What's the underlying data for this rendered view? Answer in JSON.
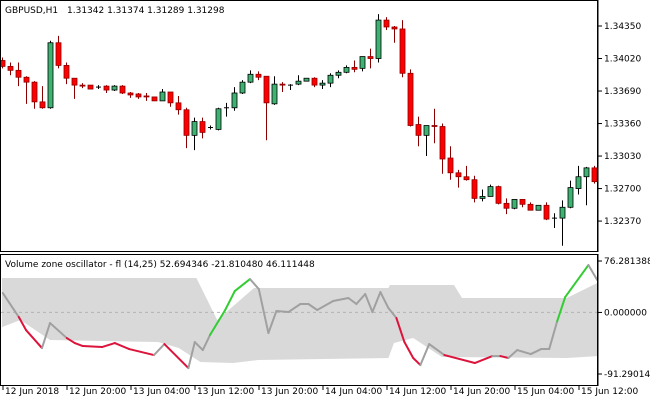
{
  "main_chart": {
    "symbol_label": "GBPUSD,H1",
    "ohlc_label": "1.31342 1.31374 1.31289 1.31298",
    "price_axis": [
      "1.34350",
      "1.34020",
      "1.33690",
      "1.33360",
      "1.33030",
      "1.32700",
      "1.32370"
    ],
    "colors": {
      "bull": "#3cb371",
      "bear": "#ff0000",
      "bear_wick": "#8b0000",
      "bull_wick": "#000000"
    }
  },
  "oscillator": {
    "label": "Volume zone oscillator - fl (14,25) 52.694346 -21.810480 46.111448",
    "axis": [
      "76.281388",
      "0.000000",
      "-91.290143"
    ],
    "colors": {
      "bull": "#32cd32",
      "bear": "#dc143c",
      "neutral": "#a0a0a0",
      "band": "#d9d9d9",
      "zero": "#b4b4b4"
    }
  },
  "time_axis": [
    "12 Jun 2018",
    "12 Jun 20:00",
    "13 Jun 04:00",
    "13 Jun 12:00",
    "13 Jun 20:00",
    "14 Jun 04:00",
    "14 Jun 12:00",
    "14 Jun 20:00",
    "15 Jun 04:00",
    "15 Jun 12:00"
  ],
  "chart_data": {
    "type": "candlestick",
    "candles_ohlc": [
      [
        1.34,
        1.3403,
        1.3392,
        1.3394
      ],
      [
        1.3394,
        1.3398,
        1.3385,
        1.339
      ],
      [
        1.339,
        1.3398,
        1.3374,
        1.3383
      ],
      [
        1.3383,
        1.3384,
        1.3356,
        1.3378
      ],
      [
        1.3378,
        1.3379,
        1.3351,
        1.3358
      ],
      [
        1.3358,
        1.3374,
        1.3351,
        1.3352
      ],
      [
        1.3352,
        1.342,
        1.3351,
        1.3418
      ],
      [
        1.3418,
        1.3425,
        1.3392,
        1.3395
      ],
      [
        1.3395,
        1.3398,
        1.3376,
        1.3382
      ],
      [
        1.3382,
        1.3382,
        1.3361,
        1.3375
      ],
      [
        1.3375,
        1.3377,
        1.3372,
        1.3374
      ],
      [
        1.3375,
        1.3375,
        1.3371,
        1.3371
      ],
      [
        1.3373,
        1.3375,
        1.3371,
        1.3373
      ],
      [
        1.3374,
        1.3375,
        1.3367,
        1.337
      ],
      [
        1.337,
        1.3375,
        1.3369,
        1.3374
      ],
      [
        1.3374,
        1.3375,
        1.3366,
        1.3367
      ],
      [
        1.3367,
        1.3368,
        1.3362,
        1.3365
      ],
      [
        1.3366,
        1.3367,
        1.3361,
        1.3363
      ],
      [
        1.3364,
        1.3367,
        1.3359,
        1.3363
      ],
      [
        1.3363,
        1.3363,
        1.3359,
        1.3359
      ],
      [
        1.3359,
        1.3371,
        1.3359,
        1.3368
      ],
      [
        1.3368,
        1.3368,
        1.3353,
        1.3357
      ],
      [
        1.3357,
        1.3364,
        1.3345,
        1.335
      ],
      [
        1.335,
        1.3352,
        1.3311,
        1.3324
      ],
      [
        1.3324,
        1.3342,
        1.3309,
        1.3338
      ],
      [
        1.3338,
        1.3342,
        1.3321,
        1.3327
      ],
      [
        1.3332,
        1.3334,
        1.333,
        1.3332
      ],
      [
        1.333,
        1.3352,
        1.3329,
        1.3351
      ],
      [
        1.3352,
        1.3357,
        1.3343,
        1.3352
      ],
      [
        1.3352,
        1.3373,
        1.3349,
        1.3367
      ],
      [
        1.3367,
        1.338,
        1.3366,
        1.3378
      ],
      [
        1.3378,
        1.339,
        1.3377,
        1.3386
      ],
      [
        1.3386,
        1.3389,
        1.338,
        1.3383
      ],
      [
        1.3384,
        1.3384,
        1.3319,
        1.3357
      ],
      [
        1.3356,
        1.3384,
        1.3355,
        1.3376
      ],
      [
        1.3376,
        1.3378,
        1.3368,
        1.3375
      ],
      [
        1.3375,
        1.3376,
        1.337,
        1.3375
      ],
      [
        1.3376,
        1.3385,
        1.3375,
        1.3379
      ],
      [
        1.3379,
        1.3382,
        1.3379,
        1.3382
      ],
      [
        1.3382,
        1.3383,
        1.3373,
        1.3375
      ],
      [
        1.3375,
        1.338,
        1.3371,
        1.3377
      ],
      [
        1.3377,
        1.3387,
        1.3373,
        1.3385
      ],
      [
        1.3385,
        1.339,
        1.3382,
        1.3388
      ],
      [
        1.3388,
        1.3395,
        1.3387,
        1.3393
      ],
      [
        1.3393,
        1.34,
        1.3388,
        1.3391
      ],
      [
        1.3392,
        1.3404,
        1.3389,
        1.3404
      ],
      [
        1.3404,
        1.3412,
        1.3392,
        1.3402
      ],
      [
        1.3402,
        1.3447,
        1.3398,
        1.3441
      ],
      [
        1.3441,
        1.3444,
        1.3431,
        1.3434
      ],
      [
        1.3434,
        1.3435,
        1.3418,
        1.3432
      ],
      [
        1.3432,
        1.3441,
        1.3383,
        1.3387
      ],
      [
        1.3387,
        1.3391,
        1.3333,
        1.3334
      ],
      [
        1.3335,
        1.3343,
        1.3313,
        1.3324
      ],
      [
        1.3324,
        1.3334,
        1.3303,
        1.3334
      ],
      [
        1.3334,
        1.3351,
        1.3316,
        1.3333
      ],
      [
        1.3333,
        1.3336,
        1.3285,
        1.33
      ],
      [
        1.3301,
        1.3313,
        1.3279,
        1.3286
      ],
      [
        1.3286,
        1.3289,
        1.3271,
        1.3282
      ],
      [
        1.3282,
        1.3293,
        1.3278,
        1.3279
      ],
      [
        1.3279,
        1.3283,
        1.3256,
        1.326
      ],
      [
        1.326,
        1.3269,
        1.3257,
        1.3262
      ],
      [
        1.3262,
        1.3274,
        1.3262,
        1.3272
      ],
      [
        1.3272,
        1.3273,
        1.3254,
        1.3255
      ],
      [
        1.3255,
        1.326,
        1.3244,
        1.325
      ],
      [
        1.325,
        1.3259,
        1.3249,
        1.3259
      ],
      [
        1.3259,
        1.3259,
        1.3251,
        1.3254
      ],
      [
        1.3254,
        1.3256,
        1.3248,
        1.3248
      ],
      [
        1.3248,
        1.3253,
        1.3248,
        1.3253
      ],
      [
        1.3253,
        1.3256,
        1.3238,
        1.3239
      ],
      [
        1.324,
        1.3245,
        1.323,
        1.324
      ],
      [
        1.324,
        1.3258,
        1.3212,
        1.3251
      ],
      [
        1.3251,
        1.3278,
        1.325,
        1.3271
      ],
      [
        1.327,
        1.3293,
        1.3264,
        1.3282
      ],
      [
        1.3282,
        1.3292,
        1.3253,
        1.3291
      ],
      [
        1.3291,
        1.3293,
        1.3275,
        1.3277
      ]
    ],
    "price_range": [
      1.321,
      1.346
    ],
    "oscillator_range": [
      -91.290143,
      76.281388
    ],
    "oscillator_line": [
      [
        0.1,
        28.8,
        "n"
      ],
      [
        2.1,
        -6.8,
        "n"
      ],
      [
        3,
        -26.1,
        "bear"
      ],
      [
        5,
        -52.8,
        "bear"
      ],
      [
        6,
        -15.7,
        "n"
      ],
      [
        8.1,
        -38.0,
        "n"
      ],
      [
        9.1,
        -45.4,
        "bear"
      ],
      [
        10.1,
        -49.8,
        "bear"
      ],
      [
        12.5,
        -51.3,
        "bear"
      ],
      [
        14.1,
        -45.4,
        "bear"
      ],
      [
        15.9,
        -54.3,
        "bear"
      ],
      [
        19,
        -63.2,
        "bear"
      ],
      [
        20.3,
        -46.9,
        "n"
      ],
      [
        23.3,
        -82.5,
        "bear"
      ],
      [
        24.1,
        -43.9,
        "n"
      ],
      [
        25.1,
        -55.8,
        "n"
      ],
      [
        26,
        -33.5,
        "n"
      ],
      [
        27.9,
        3.6,
        "bull"
      ],
      [
        29.1,
        31.7,
        "bull"
      ],
      [
        31,
        49.5,
        "bull"
      ],
      [
        32.1,
        34.7,
        "n"
      ],
      [
        33.3,
        -30.6,
        "n"
      ],
      [
        34.3,
        2.1,
        "n"
      ],
      [
        35.8,
        0.6,
        "n"
      ],
      [
        37.3,
        12.5,
        "n"
      ],
      [
        38.3,
        12.5,
        "n"
      ],
      [
        39.4,
        3.6,
        "n"
      ],
      [
        41.4,
        16.9,
        "n"
      ],
      [
        43.3,
        21.4,
        "n"
      ],
      [
        44.3,
        12.5,
        "n"
      ],
      [
        45.4,
        27.3,
        "n"
      ],
      [
        46.3,
        0.6,
        "n"
      ],
      [
        47.3,
        30.2,
        "n"
      ],
      [
        48.3,
        6.5,
        "n"
      ],
      [
        49.3,
        -8.3,
        "n"
      ],
      [
        50.3,
        -43.9,
        "bear"
      ],
      [
        51.4,
        -67.6,
        "bear"
      ],
      [
        52.3,
        -78.0,
        "bear"
      ],
      [
        53.4,
        -46.9,
        "n"
      ],
      [
        55.3,
        -63.2,
        "n"
      ],
      [
        59.1,
        -75.0,
        "bear"
      ],
      [
        61.3,
        -64.7,
        "bear"
      ],
      [
        62.3,
        -64.7,
        "n"
      ],
      [
        63.3,
        -67.6,
        "bear"
      ],
      [
        64.4,
        -55.8,
        "n"
      ],
      [
        66.1,
        -61.7,
        "n"
      ],
      [
        67.4,
        -54.3,
        "n"
      ],
      [
        68.4,
        -54.3,
        "n"
      ],
      [
        69.4,
        -12.9,
        "n"
      ],
      [
        70.4,
        22.8,
        "bull"
      ],
      [
        73.3,
        70.3,
        "bull"
      ],
      [
        74.4,
        48.1,
        "n"
      ]
    ],
    "upper_band": [
      [
        0,
        51
      ],
      [
        24.3,
        51
      ],
      [
        26.9,
        -11.3
      ],
      [
        31.5,
        36.2
      ],
      [
        48.3,
        36.2
      ],
      [
        48.5,
        40.6
      ],
      [
        56.5,
        40.6
      ],
      [
        57.5,
        21.4
      ],
      [
        70.6,
        21.4
      ],
      [
        74.4,
        43.6
      ]
    ],
    "lower_band": [
      [
        0,
        -21.7
      ],
      [
        2.3,
        -11.3
      ],
      [
        6,
        -40.9
      ],
      [
        19.5,
        -43.9
      ],
      [
        22.1,
        -52.8
      ],
      [
        24.8,
        -73.5
      ],
      [
        28.9,
        -75
      ],
      [
        32,
        -70.6
      ],
      [
        48.3,
        -67.6
      ],
      [
        49,
        -45.4
      ],
      [
        51.4,
        -38
      ],
      [
        55,
        -66.1
      ],
      [
        70.6,
        -67.6
      ],
      [
        74.4,
        -64.7
      ]
    ]
  }
}
